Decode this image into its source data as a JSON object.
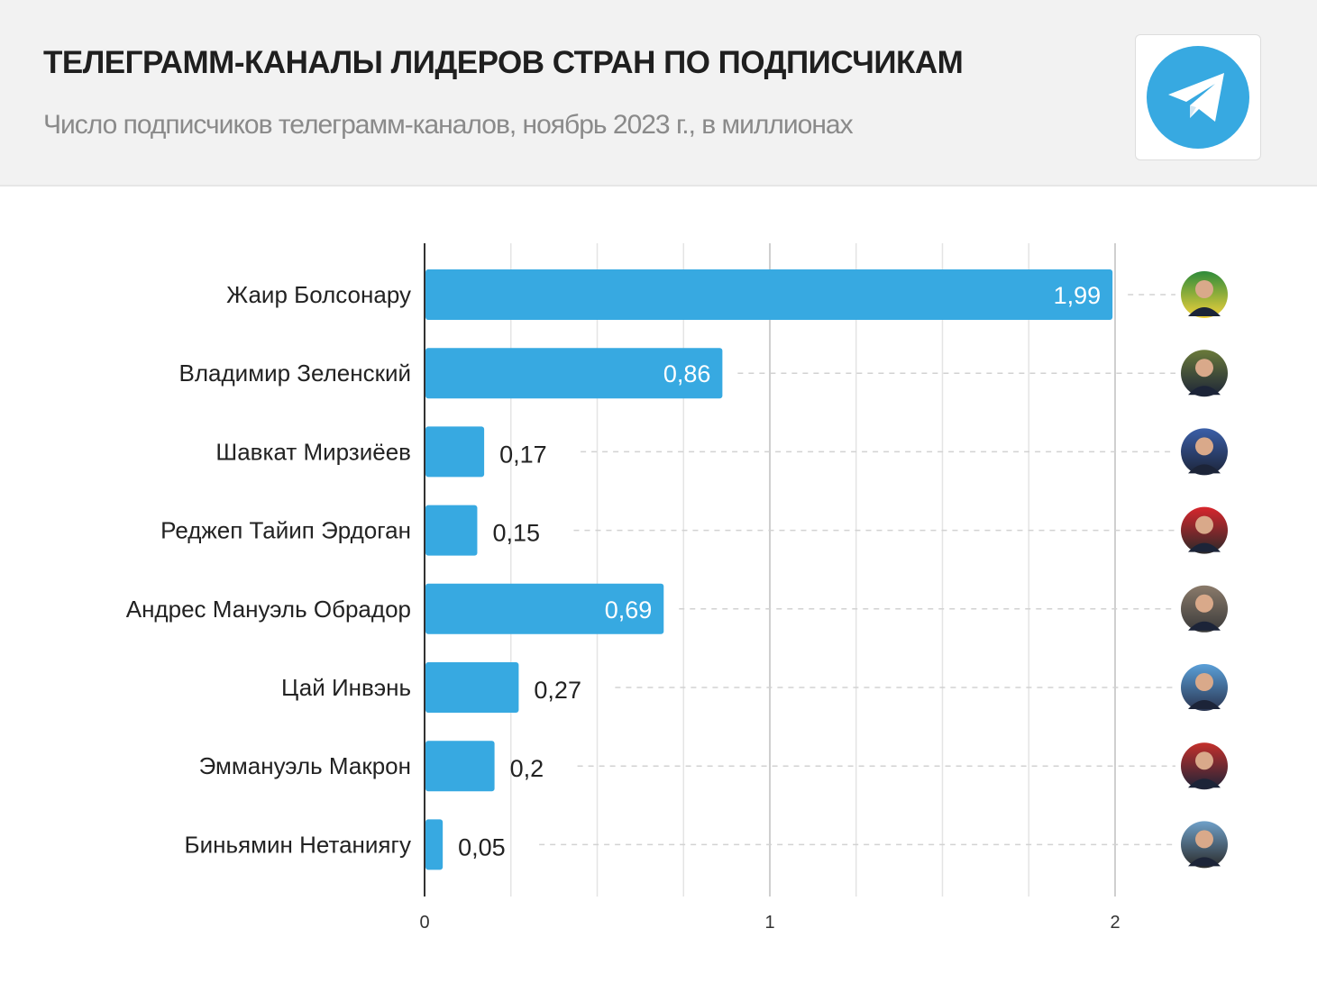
{
  "header": {
    "title": "ТЕЛЕГРАММ-КАНАЛЫ ЛИДЕРОВ СТРАН ПО ПОДПИСЧИКАМ",
    "subtitle": "Число подписчиков телеграмм-каналов, ноябрь 2023 г., в миллионах",
    "logo": "telegram-logo",
    "accent_color": "#37a9e1"
  },
  "chart_data": {
    "type": "bar",
    "orientation": "horizontal",
    "title": "ТЕЛЕГРАММ-КАНАЛЫ ЛИДЕРОВ СТРАН ПО ПОДПИСЧИКАМ",
    "subtitle": "Число подписчиков телеграмм-каналов, ноябрь 2023 г., в миллионах",
    "categories": [
      "Жаир Болсонару",
      "Владимир Зеленский",
      "Шавкат Мирзиёев",
      "Реджеп Тайип Эрдоган",
      "Андрес Мануэль Обрадор",
      "Цай Инвэнь",
      "Эммануэль Макрон",
      "Биньямин Нетаниягу"
    ],
    "values": [
      1.99,
      0.86,
      0.17,
      0.15,
      0.69,
      0.27,
      0.2,
      0.05
    ],
    "value_labels": [
      "1,99",
      "0,86",
      "0,17",
      "0,15",
      "0,69",
      "0,27",
      "0,2",
      "0,05"
    ],
    "xlim": [
      0,
      2
    ],
    "xticks": [
      0,
      1,
      2
    ],
    "xtick_labels": [
      "0",
      "1",
      "2"
    ],
    "minor_grid_step": 0.25,
    "grid": true,
    "bar_color": "#37a9e1",
    "avatar_colors": [
      [
        "#2e8b3a",
        "#f2d13b"
      ],
      [
        "#6a7a3a",
        "#1c2438"
      ],
      [
        "#3b5fa8",
        "#1c2438"
      ],
      [
        "#d8262c",
        "#2a2a2a"
      ],
      [
        "#8a7a6a",
        "#3a3a3a"
      ],
      [
        "#5a9fd8",
        "#2a3550"
      ],
      [
        "#c4302b",
        "#1c2438"
      ],
      [
        "#6fa0c8",
        "#2a2a2a"
      ]
    ]
  }
}
